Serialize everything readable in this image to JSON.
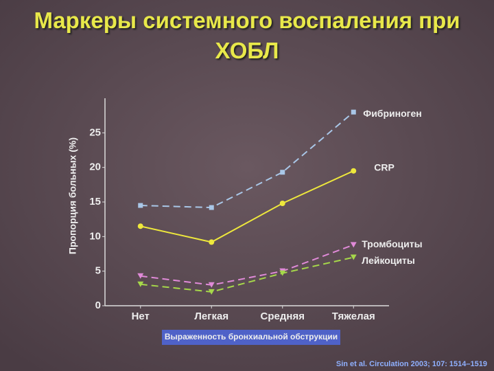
{
  "chart_data": {
    "type": "line",
    "title": "Маркеры системного воспаления при ХОБЛ",
    "y_label": "Пропорция больных (%)",
    "x_label": "Выраженность бронхиальной обструкции",
    "source": "Sin et al. Circulation 2003; 107: 1514–1519",
    "categories": [
      "Нет",
      "Легкая",
      "Средняя",
      "Тяжелая"
    ],
    "series": [
      {
        "name": "Фибриноген",
        "color": "#a9c7e8",
        "line_style": "dashed",
        "marker": "square",
        "values": [
          14.5,
          14.2,
          19.3,
          28
        ]
      },
      {
        "name": "CRP",
        "color": "#eee83c",
        "line_style": "solid",
        "marker": "circle",
        "values": [
          11.5,
          9.2,
          14.8,
          19.5
        ]
      },
      {
        "name": "Тромбоциты",
        "color": "#e08ad8",
        "line_style": "dashed",
        "marker": "triangle",
        "values": [
          4.3,
          3,
          5,
          8.8
        ]
      },
      {
        "name": "Лейкоциты",
        "color": "#a6d84a",
        "line_style": "dashed",
        "marker": "triangle",
        "values": [
          3.1,
          2,
          4.7,
          7
        ]
      }
    ],
    "ylim": [
      0,
      30
    ],
    "yticks": [
      0,
      5,
      10,
      15,
      20,
      25
    ],
    "grid": false
  }
}
